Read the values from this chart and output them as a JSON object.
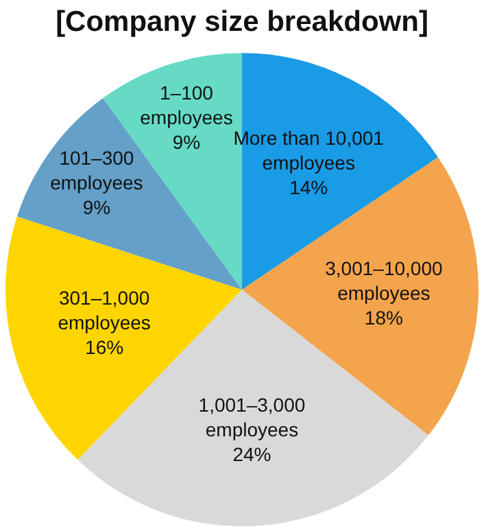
{
  "chart_data": {
    "type": "pie",
    "title": "[Company size breakdown]",
    "categories": [
      "More than 10,001\nemployees",
      "3,001–10,000\nemployees",
      "1,001–3,000\nemployees",
      "301–1,000\nemployees",
      "101–300\nemployees",
      "1–100\nemployees"
    ],
    "values": [
      14,
      18,
      24,
      16,
      9,
      9
    ],
    "value_labels": [
      "14%",
      "18%",
      "24%",
      "16%",
      "9%",
      "9%"
    ],
    "colors": [
      "#1a9be6",
      "#f4a44c",
      "#d9d9d9",
      "#ffd500",
      "#64a0c8",
      "#66dac4"
    ],
    "legend": false
  }
}
